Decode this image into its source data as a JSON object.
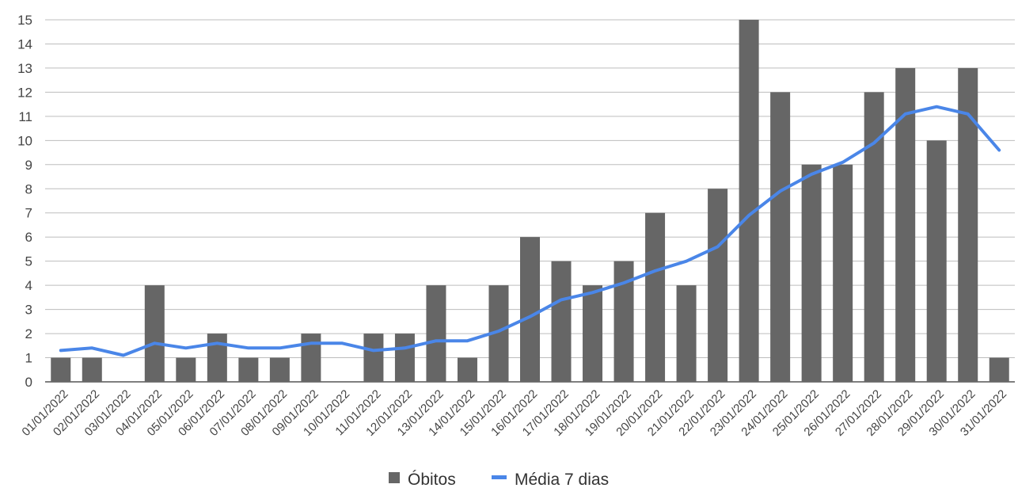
{
  "chart_data": {
    "type": "bar",
    "categories": [
      "01/01/2022",
      "02/01/2022",
      "03/01/2022",
      "04/01/2022",
      "05/01/2022",
      "06/01/2022",
      "07/01/2022",
      "08/01/2022",
      "09/01/2022",
      "10/01/2022",
      "11/01/2022",
      "12/01/2022",
      "13/01/2022",
      "14/01/2022",
      "15/01/2022",
      "16/01/2022",
      "17/01/2022",
      "18/01/2022",
      "19/01/2022",
      "20/01/2022",
      "21/01/2022",
      "22/01/2022",
      "23/01/2022",
      "24/01/2022",
      "25/01/2022",
      "26/01/2022",
      "27/01/2022",
      "28/01/2022",
      "29/01/2022",
      "30/01/2022",
      "31/01/2022"
    ],
    "series": [
      {
        "name": "Óbitos",
        "type": "bar",
        "color": "#666666",
        "values": [
          1,
          1,
          0,
          4,
          1,
          2,
          1,
          1,
          2,
          0,
          2,
          2,
          4,
          1,
          4,
          6,
          5,
          4,
          5,
          7,
          4,
          8,
          15,
          12,
          9,
          9,
          12,
          13,
          10,
          13,
          1
        ]
      },
      {
        "name": "Média 7 dias",
        "type": "line",
        "color": "#4a86e8",
        "values": [
          1.3,
          1.4,
          1.1,
          1.6,
          1.4,
          1.6,
          1.4,
          1.4,
          1.6,
          1.6,
          1.3,
          1.4,
          1.7,
          1.7,
          2.1,
          2.7,
          3.4,
          3.7,
          4.1,
          4.6,
          5.0,
          5.6,
          6.9,
          7.9,
          8.6,
          9.1,
          9.9,
          11.1,
          11.4,
          11.1,
          9.6
        ]
      }
    ],
    "yticks": [
      0,
      1,
      2,
      3,
      4,
      5,
      6,
      7,
      8,
      9,
      10,
      11,
      12,
      13,
      14,
      15
    ],
    "ylim": [
      0,
      15
    ],
    "grid": true,
    "legend_position": "bottom"
  }
}
